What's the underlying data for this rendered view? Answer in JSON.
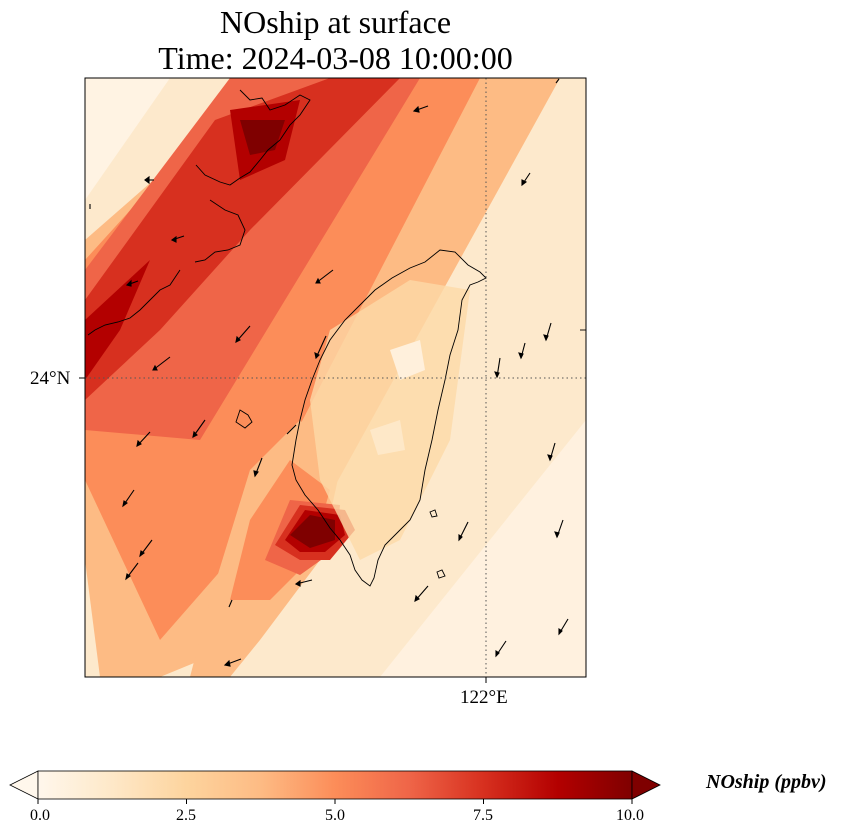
{
  "title_line1": "NOship at surface",
  "title_line2": "Time: 2024-03-08 10:00:00",
  "map": {
    "lat_tick_label": "24°N",
    "lon_tick_label": "122°E",
    "gridline_latitude": 24,
    "gridline_longitude": 122,
    "gridlines": "dotted",
    "colormap": "OrRd",
    "vectors": "wind arrows"
  },
  "colorbar": {
    "label": "NOship (ppbv)",
    "min": 0.0,
    "max": 10.0,
    "extend": "both",
    "ticks": [
      "0.0",
      "2.5",
      "5.0",
      "7.5",
      "10.0"
    ],
    "colors": [
      "#fff7ec",
      "#fee8c8",
      "#fdd49e",
      "#fdbb84",
      "#fc8d59",
      "#ef6548",
      "#d7301f",
      "#b30000",
      "#7f0000"
    ]
  }
}
